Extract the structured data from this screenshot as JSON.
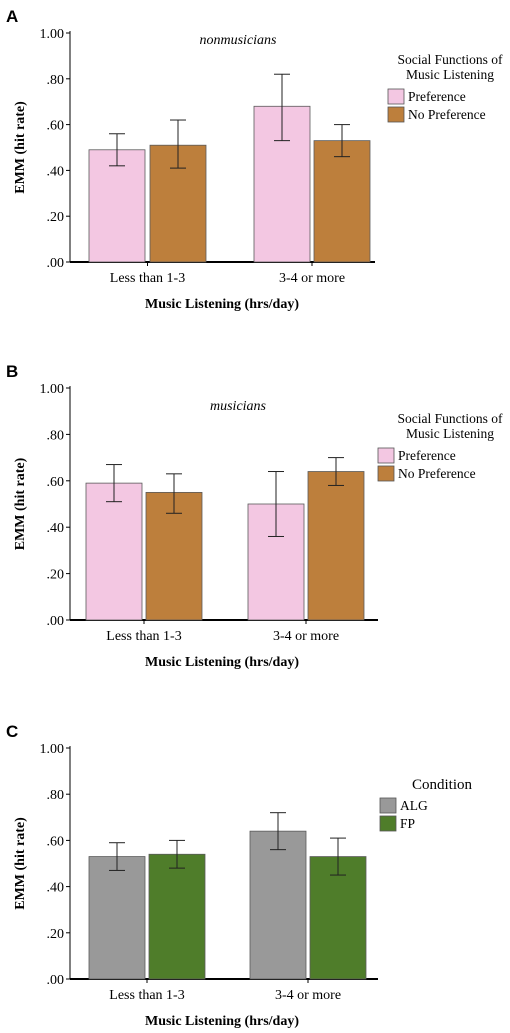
{
  "colors": {
    "preference": "#f3c7e2",
    "no_preference": "#bd7f3c",
    "alg": "#999999",
    "fp": "#4f7d2a",
    "axis": "#000000"
  },
  "chart_data": [
    {
      "type": "bar",
      "panel": "A",
      "annotation": "nonmusicians",
      "categories": [
        "Less than 1-3",
        "3-4 or more"
      ],
      "series": [
        {
          "name": "Preference",
          "color_key": "preference",
          "values": [
            0.49,
            0.68
          ],
          "err_low": [
            0.42,
            0.53
          ],
          "err_high": [
            0.56,
            0.82
          ]
        },
        {
          "name": "No Preference",
          "color_key": "no_preference",
          "values": [
            0.51,
            0.53
          ],
          "err_low": [
            0.41,
            0.46
          ],
          "err_high": [
            0.62,
            0.6
          ]
        }
      ],
      "xlabel": "Music Listening (hrs/day)",
      "ylabel": "EMM (hit rate)",
      "ylim": [
        0,
        1
      ],
      "yticks": [
        ".00",
        ".20",
        ".40",
        ".60",
        ".80",
        "1.00"
      ],
      "legend_title": [
        "Social Functions of",
        "Music Listening"
      ],
      "legend_placement": "right",
      "grid": false
    },
    {
      "type": "bar",
      "panel": "B",
      "annotation": "musicians",
      "categories": [
        "Less than 1-3",
        "3-4 or more"
      ],
      "series": [
        {
          "name": "Preference",
          "color_key": "preference",
          "values": [
            0.59,
            0.5
          ],
          "err_low": [
            0.51,
            0.36
          ],
          "err_high": [
            0.67,
            0.64
          ]
        },
        {
          "name": "No Preference",
          "color_key": "no_preference",
          "values": [
            0.55,
            0.64
          ],
          "err_low": [
            0.46,
            0.58
          ],
          "err_high": [
            0.63,
            0.7
          ]
        }
      ],
      "xlabel": "Music Listening (hrs/day)",
      "ylabel": "EMM (hit rate)",
      "ylim": [
        0,
        1
      ],
      "yticks": [
        ".00",
        ".20",
        ".40",
        ".60",
        ".80",
        "1.00"
      ],
      "legend_title": [
        "Social Functions of",
        "Music Listening"
      ],
      "legend_placement": "right",
      "grid": false
    },
    {
      "type": "bar",
      "panel": "C",
      "annotation": "",
      "categories": [
        "Less than 1-3",
        "3-4 or more"
      ],
      "series": [
        {
          "name": "ALG",
          "color_key": "alg",
          "values": [
            0.53,
            0.64
          ],
          "err_low": [
            0.47,
            0.56
          ],
          "err_high": [
            0.59,
            0.72
          ]
        },
        {
          "name": "FP",
          "color_key": "fp",
          "values": [
            0.54,
            0.53
          ],
          "err_low": [
            0.48,
            0.45
          ],
          "err_high": [
            0.6,
            0.61
          ]
        }
      ],
      "xlabel": "Music Listening (hrs/day)",
      "ylabel": "EMM (hit rate)",
      "ylim": [
        0,
        1
      ],
      "yticks": [
        ".00",
        ".20",
        ".40",
        ".60",
        ".80",
        "1.00"
      ],
      "legend_title": [
        "Condition"
      ],
      "legend_placement": "right",
      "grid": false
    }
  ]
}
